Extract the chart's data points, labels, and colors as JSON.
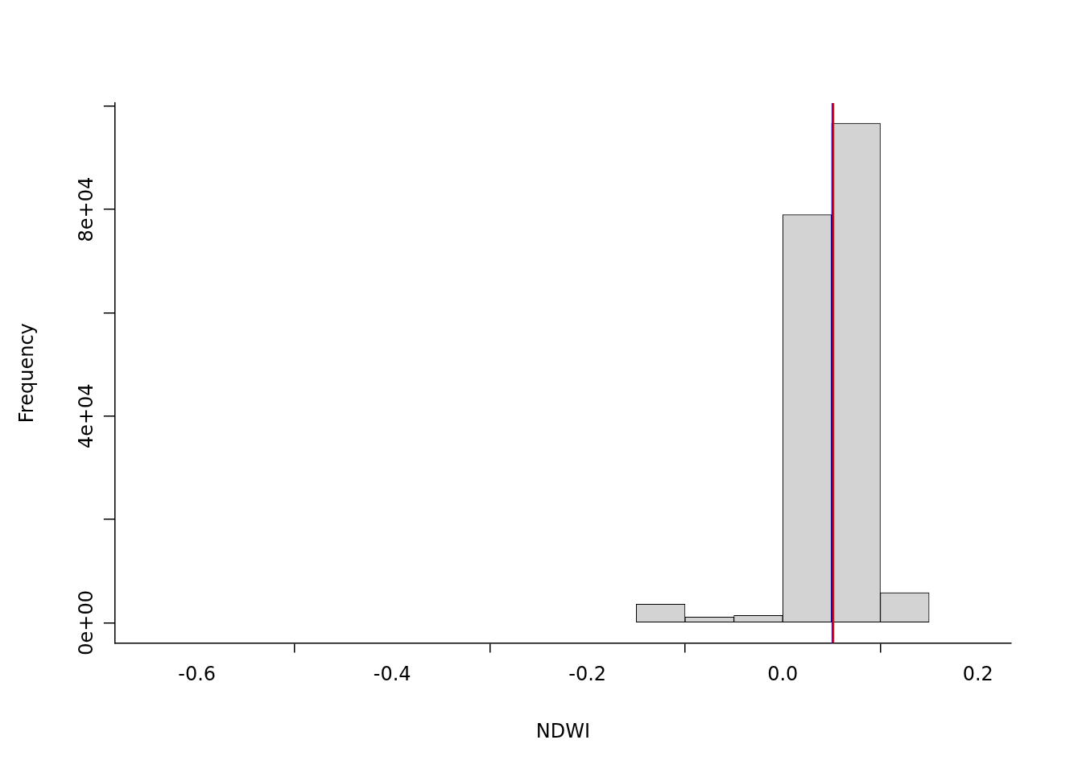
{
  "chart_data": {
    "type": "histogram",
    "xlabel": "NDWI",
    "ylabel": "Frequency",
    "bins": [
      -0.65,
      -0.6,
      -0.55,
      -0.5,
      -0.45,
      -0.4,
      -0.35,
      -0.3,
      -0.25,
      -0.2,
      -0.15,
      -0.1,
      -0.05,
      0,
      0.05,
      0.1,
      0.15,
      0.2
    ],
    "values": [
      0,
      0,
      0,
      0,
      0,
      0,
      0,
      0,
      0,
      0,
      3600,
      1100,
      1400,
      79000,
      96700,
      5800,
      0
    ],
    "color": "#d3d3d3",
    "xlim": [
      -0.684,
      0.234
    ],
    "ylim": [
      -3900,
      100600
    ],
    "xticks": [
      -0.6,
      -0.4,
      -0.2,
      {
        "value": 0,
        "label": "0.0"
      },
      0.2
    ],
    "yticks": [
      {
        "value": 0,
        "label": "0e+00"
      },
      {
        "value": 20000,
        "label": null
      },
      {
        "value": 40000,
        "label": "4e+04"
      },
      {
        "value": 60000,
        "label": null
      },
      {
        "value": 80000,
        "label": "8e+04"
      },
      {
        "value": 100000,
        "label": null
      }
    ],
    "ref_lines": [
      {
        "axis": "x",
        "value": 0.051,
        "color": "#0000ff"
      },
      {
        "axis": "x",
        "value": 0.052,
        "color": "#ff0000"
      }
    ],
    "grid": false,
    "legend": false
  }
}
